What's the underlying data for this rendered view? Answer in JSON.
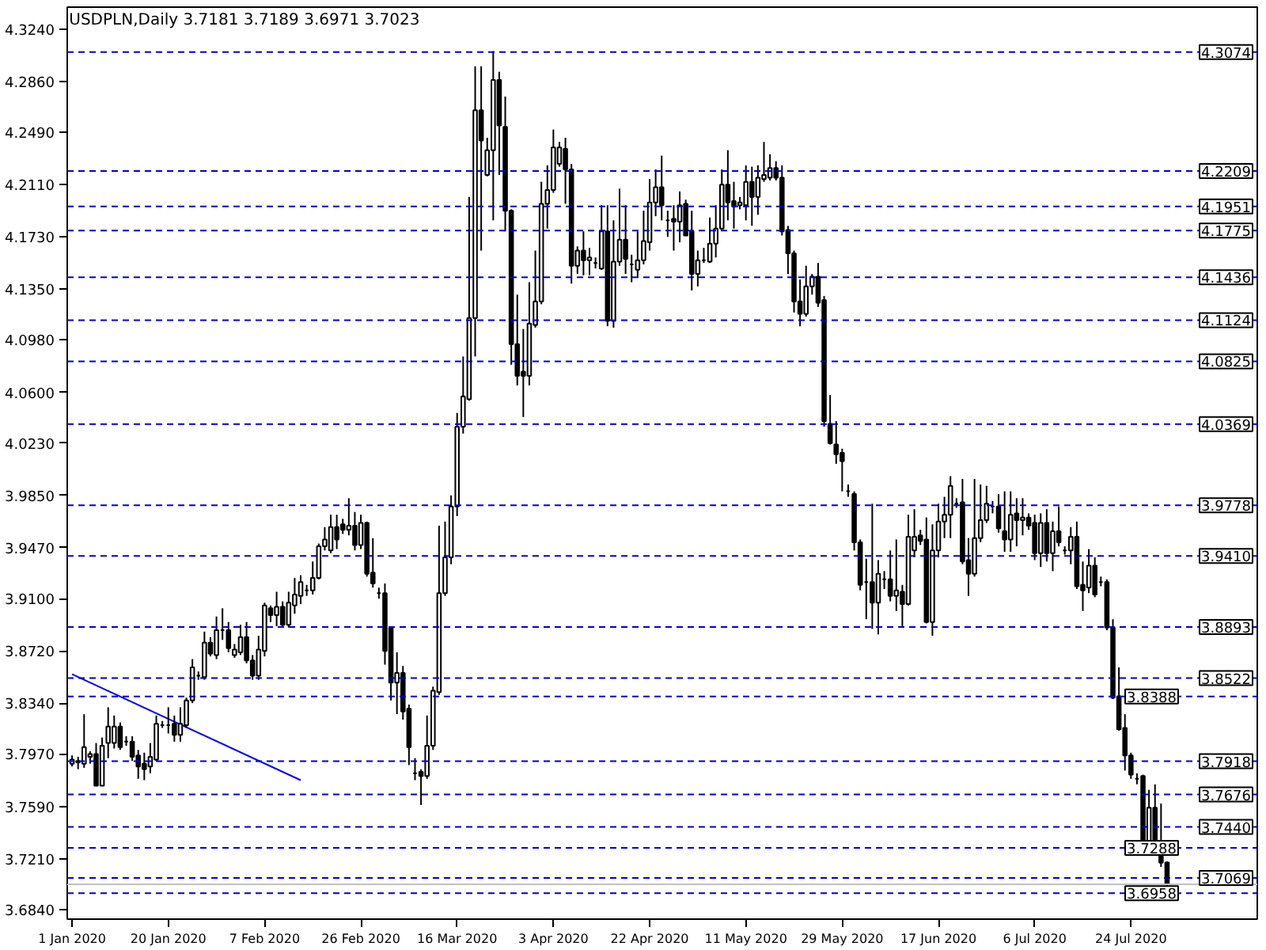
{
  "chart_data": {
    "type": "candlestick",
    "title": "USDPLN,Daily  3.7181 3.7189 3.6971 3.7023",
    "categories": [
      "1 Jan 2020",
      null,
      null,
      null,
      null,
      null,
      null,
      null,
      null,
      null,
      null,
      null,
      null,
      null,
      null,
      null,
      "20 Jan 2020",
      null,
      null,
      null,
      null,
      null,
      null,
      null,
      null,
      null,
      null,
      null,
      null,
      null,
      null,
      null,
      "7 Feb 2020",
      null,
      null,
      null,
      null,
      null,
      null,
      null,
      null,
      null,
      null,
      null,
      null,
      null,
      null,
      null,
      "26 Feb 2020",
      null,
      null,
      null,
      null,
      null,
      null,
      null,
      null,
      null,
      null,
      null,
      null,
      null,
      null,
      null,
      "16 Mar 2020",
      null,
      null,
      null,
      null,
      null,
      null,
      null,
      null,
      null,
      null,
      null,
      null,
      null,
      null,
      null,
      "3 Apr 2020",
      null,
      null,
      null,
      null,
      null,
      null,
      null,
      null,
      null,
      null,
      null,
      null,
      null,
      null,
      null,
      "22 Apr 2020",
      null,
      null,
      null,
      null,
      null,
      null,
      null,
      null,
      null,
      null,
      null,
      null,
      null,
      null,
      null,
      "11 May 2020",
      null,
      null,
      null,
      null,
      null,
      null,
      null,
      null,
      null,
      null,
      null,
      null,
      null,
      null,
      null,
      "29 May 2020",
      null,
      null,
      null,
      null,
      null,
      null,
      null,
      null,
      null,
      null,
      null,
      null,
      null,
      null,
      null,
      "17 Jun 2020",
      null,
      null,
      null,
      null,
      null,
      null,
      null,
      null,
      null,
      null,
      null,
      null,
      null,
      null,
      null,
      "6 Jul 2020",
      null,
      null,
      null,
      null,
      null,
      null,
      null,
      null,
      null,
      null,
      null,
      null,
      null,
      null,
      null,
      "24 Jul 2020",
      null,
      null,
      null,
      null,
      null,
      null
    ],
    "ohlc": [
      [
        3.79,
        3.796,
        3.788,
        3.793
      ],
      [
        3.792,
        3.795,
        3.786,
        3.791
      ],
      [
        3.79,
        3.826,
        3.787,
        3.802
      ],
      [
        3.795,
        3.799,
        3.79,
        3.797
      ],
      [
        3.797,
        3.805,
        3.774,
        3.774
      ],
      [
        3.774,
        3.809,
        3.774,
        3.803
      ],
      [
        3.805,
        3.831,
        3.794,
        3.817
      ],
      [
        3.805,
        3.825,
        3.801,
        3.817
      ],
      [
        3.817,
        3.82,
        3.8,
        3.802
      ],
      [
        3.806,
        3.81,
        3.803,
        3.806
      ],
      [
        3.806,
        3.81,
        3.792,
        3.795
      ],
      [
        3.796,
        3.8,
        3.779,
        3.788
      ],
      [
        3.79,
        3.798,
        3.778,
        3.786
      ],
      [
        3.788,
        3.805,
        3.783,
        3.795
      ],
      [
        3.793,
        3.825,
        3.792,
        3.819
      ],
      [
        3.818,
        3.821,
        3.816,
        3.818
      ],
      [
        3.818,
        3.831,
        3.812,
        3.818
      ],
      [
        3.819,
        3.825,
        3.806,
        3.811
      ],
      [
        3.811,
        3.831,
        3.806,
        3.819
      ],
      [
        3.818,
        3.838,
        3.816,
        3.836
      ],
      [
        3.836,
        3.866,
        3.834,
        3.86
      ],
      [
        3.854,
        3.857,
        3.851,
        3.854
      ],
      [
        3.853,
        3.886,
        3.851,
        3.878
      ],
      [
        3.878,
        3.882,
        3.868,
        3.87
      ],
      [
        3.869,
        3.897,
        3.866,
        3.887
      ],
      [
        3.887,
        3.903,
        3.88,
        3.887
      ],
      [
        3.887,
        3.893,
        3.871,
        3.874
      ],
      [
        3.869,
        3.877,
        3.867,
        3.873
      ],
      [
        3.871,
        3.891,
        3.869,
        3.882
      ],
      [
        3.882,
        3.893,
        3.863,
        3.865
      ],
      [
        3.865,
        3.869,
        3.851,
        3.854
      ],
      [
        3.854,
        3.883,
        3.851,
        3.873
      ],
      [
        3.872,
        3.907,
        3.868,
        3.905
      ],
      [
        3.903,
        3.905,
        3.893,
        3.898
      ],
      [
        3.898,
        3.915,
        3.89,
        3.904
      ],
      [
        3.904,
        3.908,
        3.889,
        3.891
      ],
      [
        3.891,
        3.915,
        3.889,
        3.907
      ],
      [
        3.905,
        3.925,
        3.899,
        3.913
      ],
      [
        3.912,
        3.927,
        3.906,
        3.922
      ],
      [
        3.916,
        3.92,
        3.912,
        3.916
      ],
      [
        3.916,
        3.937,
        3.913,
        3.925
      ],
      [
        3.925,
        3.95,
        3.924,
        3.948
      ],
      [
        3.948,
        3.962,
        3.945,
        3.953
      ],
      [
        3.945,
        3.971,
        3.943,
        3.962
      ],
      [
        3.962,
        3.971,
        3.946,
        3.953
      ],
      [
        3.964,
        3.968,
        3.957,
        3.96
      ],
      [
        3.96,
        3.983,
        3.956,
        3.963
      ],
      [
        3.963,
        3.973,
        3.945,
        3.949
      ],
      [
        3.949,
        3.971,
        3.946,
        3.965
      ],
      [
        3.965,
        3.966,
        3.926,
        3.928
      ],
      [
        3.929,
        3.954,
        3.918,
        3.921
      ],
      [
        3.914,
        3.918,
        3.91,
        3.914
      ],
      [
        3.914,
        3.921,
        3.862,
        3.872
      ],
      [
        3.889,
        3.889,
        3.836,
        3.849
      ],
      [
        3.849,
        3.871,
        3.826,
        3.856
      ],
      [
        3.856,
        3.861,
        3.822,
        3.828
      ],
      [
        3.83,
        3.833,
        3.789,
        3.802
      ],
      [
        3.783,
        3.794,
        3.778,
        3.783
      ],
      [
        3.784,
        3.786,
        3.76,
        3.781
      ],
      [
        3.781,
        3.825,
        3.779,
        3.803
      ],
      [
        3.803,
        3.846,
        3.8,
        3.843
      ],
      [
        3.842,
        3.963,
        3.84,
        3.914
      ],
      [
        3.914,
        3.966,
        3.912,
        3.94
      ],
      [
        3.94,
        3.985,
        3.935,
        3.977
      ],
      [
        3.977,
        4.045,
        3.97,
        4.035
      ],
      [
        4.035,
        4.086,
        4.03,
        4.057
      ],
      [
        4.055,
        4.202,
        4.054,
        4.114
      ],
      [
        4.114,
        4.297,
        4.086,
        4.265
      ],
      [
        4.265,
        4.297,
        4.163,
        4.243
      ],
      [
        4.218,
        4.245,
        4.217,
        4.236
      ],
      [
        4.236,
        4.308,
        4.185,
        4.287
      ],
      [
        4.287,
        4.293,
        4.218,
        4.254
      ],
      [
        4.253,
        4.275,
        4.177,
        4.192
      ],
      [
        4.192,
        4.193,
        4.08,
        4.095
      ],
      [
        4.095,
        4.131,
        4.065,
        4.072
      ],
      [
        4.075,
        4.106,
        4.042,
        4.072
      ],
      [
        4.072,
        4.14,
        4.065,
        4.11
      ],
      [
        4.109,
        4.163,
        4.107,
        4.126
      ],
      [
        4.126,
        4.213,
        4.124,
        4.197
      ],
      [
        4.197,
        4.225,
        4.179,
        4.207
      ],
      [
        4.207,
        4.251,
        4.205,
        4.238
      ],
      [
        4.226,
        4.242,
        4.224,
        4.238
      ],
      [
        4.237,
        4.245,
        4.197,
        4.222
      ],
      [
        4.222,
        4.226,
        4.139,
        4.152
      ],
      [
        4.152,
        4.166,
        4.146,
        4.163
      ],
      [
        4.163,
        4.177,
        4.145,
        4.156
      ],
      [
        4.156,
        4.165,
        4.145,
        4.158
      ],
      [
        4.154,
        4.158,
        4.15,
        4.154
      ],
      [
        4.15,
        4.196,
        4.149,
        4.177
      ],
      [
        4.177,
        4.196,
        4.108,
        4.112
      ],
      [
        4.112,
        4.185,
        4.107,
        4.155
      ],
      [
        4.155,
        4.208,
        4.152,
        4.171
      ],
      [
        4.171,
        4.196,
        4.146,
        4.157
      ],
      [
        4.153,
        4.16,
        4.14,
        4.153
      ],
      [
        4.149,
        4.177,
        4.144,
        4.156
      ],
      [
        4.156,
        4.192,
        4.153,
        4.17
      ],
      [
        4.169,
        4.215,
        4.163,
        4.198
      ],
      [
        4.198,
        4.222,
        4.188,
        4.209
      ],
      [
        4.209,
        4.232,
        4.185,
        4.196
      ],
      [
        4.185,
        4.192,
        4.173,
        4.185
      ],
      [
        4.186,
        4.196,
        4.163,
        4.184
      ],
      [
        4.184,
        4.206,
        4.169,
        4.196
      ],
      [
        4.197,
        4.2,
        4.174,
        4.174
      ],
      [
        4.177,
        4.192,
        4.134,
        4.146
      ],
      [
        4.146,
        4.163,
        4.137,
        4.156
      ],
      [
        4.156,
        4.165,
        4.154,
        4.156
      ],
      [
        4.155,
        4.187,
        4.154,
        4.168
      ],
      [
        4.168,
        4.196,
        4.158,
        4.179
      ],
      [
        4.179,
        4.222,
        4.178,
        4.211
      ],
      [
        4.211,
        4.236,
        4.185,
        4.198
      ],
      [
        4.199,
        4.213,
        4.179,
        4.195
      ],
      [
        4.196,
        4.202,
        4.193,
        4.198
      ],
      [
        4.196,
        4.225,
        4.185,
        4.213
      ],
      [
        4.213,
        4.224,
        4.181,
        4.202
      ],
      [
        4.202,
        4.225,
        4.189,
        4.216
      ],
      [
        4.215,
        4.242,
        4.213,
        4.218
      ],
      [
        4.216,
        4.233,
        4.214,
        4.223
      ],
      [
        4.223,
        4.228,
        4.214,
        4.216
      ],
      [
        4.216,
        4.225,
        4.174,
        4.177
      ],
      [
        4.178,
        4.181,
        4.146,
        4.161
      ],
      [
        4.161,
        4.163,
        4.118,
        4.126
      ],
      [
        4.126,
        4.142,
        4.108,
        4.117
      ],
      [
        4.117,
        4.152,
        4.115,
        4.137
      ],
      [
        4.137,
        4.146,
        4.131,
        4.144
      ],
      [
        4.144,
        4.154,
        4.122,
        4.125
      ],
      [
        4.127,
        4.13,
        4.035,
        4.039
      ],
      [
        4.037,
        4.058,
        4.022,
        4.023
      ],
      [
        4.022,
        4.039,
        4.008,
        4.015
      ],
      [
        4.016,
        4.019,
        3.988,
        4.01
      ],
      [
        3.988,
        3.993,
        3.984,
        3.988
      ],
      [
        3.986,
        3.988,
        3.945,
        3.951
      ],
      [
        3.951,
        3.953,
        3.916,
        3.92
      ],
      [
        3.922,
        3.939,
        3.895,
        3.922
      ],
      [
        3.922,
        3.979,
        3.888,
        3.907
      ],
      [
        3.907,
        3.938,
        3.884,
        3.928
      ],
      [
        3.924,
        3.93,
        3.917,
        3.924
      ],
      [
        3.924,
        3.945,
        3.908,
        3.912
      ],
      [
        3.912,
        3.953,
        3.901,
        3.916
      ],
      [
        3.915,
        3.92,
        3.89,
        3.906
      ],
      [
        3.906,
        3.971,
        3.905,
        3.955
      ],
      [
        3.945,
        3.975,
        3.94,
        3.955
      ],
      [
        3.956,
        3.96,
        3.949,
        3.952
      ],
      [
        3.953,
        3.969,
        3.892,
        3.893
      ],
      [
        3.893,
        3.964,
        3.883,
        3.945
      ],
      [
        3.945,
        3.979,
        3.94,
        3.966
      ],
      [
        3.966,
        3.984,
        3.954,
        3.971
      ],
      [
        3.971,
        3.999,
        3.954,
        3.992
      ],
      [
        3.979,
        3.983,
        3.976,
        3.979
      ],
      [
        3.98,
        3.997,
        3.935,
        3.937
      ],
      [
        3.938,
        3.954,
        3.912,
        3.928
      ],
      [
        3.928,
        3.997,
        3.926,
        3.954
      ],
      [
        3.954,
        3.993,
        3.951,
        3.967
      ],
      [
        3.967,
        3.992,
        3.965,
        3.979
      ],
      [
        3.977,
        3.981,
        3.972,
        3.977
      ],
      [
        3.977,
        3.986,
        3.958,
        3.961
      ],
      [
        3.959,
        3.988,
        3.944,
        3.953
      ],
      [
        3.953,
        3.988,
        3.944,
        3.971
      ],
      [
        3.972,
        3.983,
        3.948,
        3.967
      ],
      [
        3.967,
        3.983,
        3.956,
        3.969
      ],
      [
        3.969,
        3.972,
        3.96,
        3.963
      ],
      [
        3.965,
        3.971,
        3.938,
        3.943
      ],
      [
        3.943,
        3.972,
        3.933,
        3.965
      ],
      [
        3.965,
        3.975,
        3.937,
        3.943
      ],
      [
        3.943,
        3.966,
        3.93,
        3.959
      ],
      [
        3.959,
        3.977,
        3.948,
        3.951
      ],
      [
        3.945,
        3.948,
        3.942,
        3.945
      ],
      [
        3.945,
        3.962,
        3.935,
        3.955
      ],
      [
        3.955,
        3.966,
        3.917,
        3.919
      ],
      [
        3.92,
        3.937,
        3.901,
        3.916
      ],
      [
        3.918,
        3.946,
        3.914,
        3.934
      ],
      [
        3.934,
        3.94,
        3.911,
        3.913
      ],
      [
        3.922,
        3.926,
        3.919,
        3.922
      ],
      [
        3.922,
        3.924,
        3.887,
        3.889
      ],
      [
        3.889,
        3.895,
        3.837,
        3.838
      ],
      [
        3.839,
        3.86,
        3.814,
        3.815
      ],
      [
        3.816,
        3.826,
        3.785,
        3.796
      ],
      [
        3.796,
        3.798,
        3.779,
        3.782
      ],
      [
        3.779,
        3.783,
        3.775,
        3.779
      ],
      [
        3.781,
        3.782,
        3.727,
        3.734
      ],
      [
        3.734,
        3.771,
        3.723,
        3.758
      ],
      [
        3.758,
        3.775,
        3.729,
        3.731
      ],
      [
        3.731,
        3.761,
        3.715,
        3.718
      ],
      [
        3.7181,
        3.7189,
        3.6971,
        3.7023
      ]
    ],
    "series": [
      {
        "type": "line",
        "values": [
          3.855,
          null,
          null,
          null,
          null,
          null,
          null,
          null,
          null,
          null,
          null,
          null,
          null,
          null,
          null,
          null,
          null,
          null,
          null,
          null,
          null,
          null,
          null,
          null,
          null,
          null,
          null,
          null,
          null,
          null,
          null,
          null,
          null,
          null,
          null,
          null,
          null,
          null,
          3.778,
          null,
          null,
          null,
          null,
          null,
          null,
          null,
          null,
          null,
          null,
          null,
          null,
          null,
          null,
          null,
          null,
          null,
          null,
          null,
          null,
          null,
          null,
          null,
          null,
          null,
          null,
          null,
          null,
          null,
          null,
          null,
          null,
          null,
          null,
          null,
          null,
          null,
          null,
          null,
          null,
          null,
          null,
          null,
          null,
          null,
          null,
          null,
          null,
          null,
          null,
          null,
          null,
          null,
          null,
          null,
          null,
          null,
          null,
          null,
          null,
          null,
          null,
          null,
          null,
          null,
          null,
          null,
          null,
          null,
          null,
          null,
          null,
          null,
          null,
          null,
          null,
          null,
          null,
          null,
          null,
          null,
          null,
          null,
          null,
          null,
          null,
          null,
          null,
          null,
          null,
          null,
          null,
          null,
          null,
          null,
          null,
          null,
          null,
          null,
          null,
          null,
          null,
          null,
          null,
          null,
          null,
          null,
          null,
          null,
          null,
          null,
          null,
          null,
          null,
          null,
          null,
          null,
          null,
          null,
          null,
          null,
          null,
          null,
          null,
          null,
          null,
          null,
          null,
          null,
          null,
          null,
          null,
          null,
          null,
          null,
          null,
          null,
          null,
          null,
          null,
          null,
          null,
          null,
          null
        ],
        "color": "#0000ff"
      }
    ],
    "ylim": [
      3.677,
      4.34
    ],
    "yticks": [
      {
        "value": 4.324,
        "label": "4.3240"
      },
      {
        "value": 4.286,
        "label": "4.2860"
      },
      {
        "value": 4.249,
        "label": "4.2490"
      },
      {
        "value": 4.211,
        "label": "4.2110"
      },
      {
        "value": 4.173,
        "label": "4.1730"
      },
      {
        "value": 4.135,
        "label": "4.1350"
      },
      {
        "value": 4.098,
        "label": "4.0980"
      },
      {
        "value": 4.06,
        "label": "4.0600"
      },
      {
        "value": 4.023,
        "label": "4.0230"
      },
      {
        "value": 3.985,
        "label": "3.9850"
      },
      {
        "value": 3.947,
        "label": "3.9470"
      },
      {
        "value": 3.91,
        "label": "3.9100"
      },
      {
        "value": 3.872,
        "label": "3.8720"
      },
      {
        "value": 3.834,
        "label": "3.8340"
      },
      {
        "value": 3.797,
        "label": "3.7970"
      },
      {
        "value": 3.759,
        "label": "3.7590"
      },
      {
        "value": 3.721,
        "label": "3.7210"
      },
      {
        "value": 3.684,
        "label": "3.6840"
      }
    ],
    "ref_lines": [
      {
        "axis": "y",
        "value": 3.7023,
        "color": "#c0c0c0",
        "line_style": "solid"
      },
      {
        "axis": "y",
        "value": 4.3074,
        "label": "4.3074",
        "color": "#0000cd",
        "line_style": "dashed"
      },
      {
        "axis": "y",
        "value": 4.2209,
        "label": "4.2209",
        "color": "#0000cd",
        "line_style": "dashed"
      },
      {
        "axis": "y",
        "value": 4.1951,
        "label": "4.1951",
        "color": "#0000cd",
        "line_style": "dashed"
      },
      {
        "axis": "y",
        "value": 4.1775,
        "label": "4.1775",
        "color": "#0000cd",
        "line_style": "dashed"
      },
      {
        "axis": "y",
        "value": 4.1436,
        "label": "4.1436",
        "color": "#0000cd",
        "line_style": "dashed"
      },
      {
        "axis": "y",
        "value": 4.1124,
        "label": "4.1124",
        "color": "#0000cd",
        "line_style": "dashed"
      },
      {
        "axis": "y",
        "value": 4.0825,
        "label": "4.0825",
        "color": "#0000cd",
        "line_style": "dashed"
      },
      {
        "axis": "y",
        "value": 4.0369,
        "label": "4.0369",
        "color": "#0000cd",
        "line_style": "dashed"
      },
      {
        "axis": "y",
        "value": 3.9778,
        "label": "3.9778",
        "color": "#0000cd",
        "line_style": "dashed"
      },
      {
        "axis": "y",
        "value": 3.941,
        "label": "3.9410",
        "color": "#0000cd",
        "line_style": "dashed"
      },
      {
        "axis": "y",
        "value": 3.8893,
        "label": "3.8893",
        "color": "#0000cd",
        "line_style": "dashed"
      },
      {
        "axis": "y",
        "value": 3.8522,
        "label": "3.8522",
        "color": "#0000cd",
        "line_style": "dashed"
      },
      {
        "axis": "y",
        "value": 3.8388,
        "label": "3.8388",
        "color": "#0000cd",
        "line_style": "dashed"
      },
      {
        "axis": "y",
        "value": 3.7918,
        "label": "3.7918",
        "color": "#0000cd",
        "line_style": "dashed"
      },
      {
        "axis": "y",
        "value": 3.7676,
        "label": "3.7676",
        "color": "#0000cd",
        "line_style": "dashed"
      },
      {
        "axis": "y",
        "value": 3.744,
        "label": "3.7440",
        "color": "#0000cd",
        "line_style": "dashed"
      },
      {
        "axis": "y",
        "value": 3.7288,
        "label": "3.7288",
        "color": "#0000cd",
        "line_style": "dashed"
      },
      {
        "axis": "y",
        "value": 3.7069,
        "label": "3.7069",
        "color": "#0000cd",
        "line_style": "dashed"
      },
      {
        "axis": "y",
        "value": 3.6958,
        "label": "3.6958",
        "color": "#0000cd",
        "line_style": "dashed"
      }
    ]
  }
}
